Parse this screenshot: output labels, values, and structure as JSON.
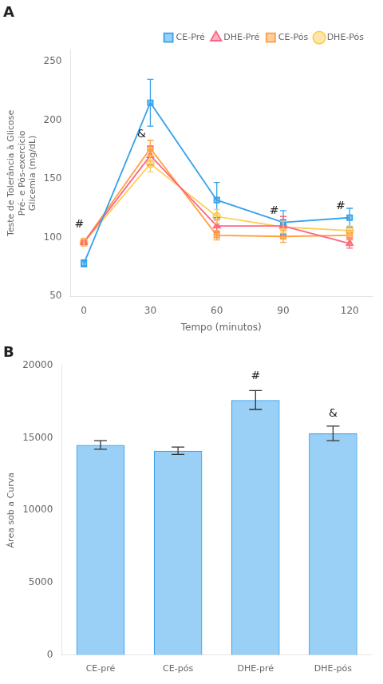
{
  "chart_data": [
    {
      "type": "line",
      "title": "A",
      "xlabel": "Tempo (minutos)",
      "ylabel": "Teste de Tolerância à Glicose\nPré- e Pós-exercício\nGlicemia (mg/dL)",
      "x": [
        0,
        30,
        60,
        90,
        120
      ],
      "xlim": [
        -6,
        130
      ],
      "xticks": [
        0,
        30,
        60,
        90,
        120
      ],
      "ylim": [
        50,
        260
      ],
      "yticks": [
        50,
        100,
        150,
        200,
        250
      ],
      "grid": false,
      "legend": "upper right",
      "series": [
        {
          "name": "CE-Pré",
          "values": [
            78,
            215,
            132,
            113,
            117
          ],
          "yerr": [
            3,
            20,
            15,
            10,
            8
          ],
          "marker": "square"
        },
        {
          "name": "DHE-Pré",
          "values": [
            96,
            170,
            110,
            110,
            95
          ],
          "yerr": [
            3,
            8,
            5,
            8,
            4
          ],
          "marker": "triangle"
        },
        {
          "name": "CE-Pós",
          "values": [
            96,
            176,
            102,
            101,
            102
          ],
          "yerr": [
            3,
            7,
            4,
            5,
            4
          ],
          "marker": "square"
        },
        {
          "name": "DHE-Pós",
          "values": [
            96,
            163,
            118,
            109,
            106
          ],
          "yerr": [
            3,
            7,
            6,
            5,
            4
          ],
          "marker": "circle"
        }
      ],
      "annotations": [
        {
          "text": "#",
          "x": 0,
          "y": 111
        },
        {
          "text": "&",
          "x": 28,
          "y": 188
        },
        {
          "text": "#",
          "x": 88,
          "y": 123
        },
        {
          "text": "#",
          "x": 118,
          "y": 127
        }
      ]
    },
    {
      "type": "bar",
      "title": "B",
      "ylabel": "Área sob a Curva",
      "categories": [
        "CE-pré",
        "CE-pós",
        "DHE-pré",
        "DHE-pós"
      ],
      "values": [
        14500,
        14100,
        17600,
        15300
      ],
      "yerr": [
        300,
        250,
        650,
        500
      ],
      "ylim": [
        0,
        20000
      ],
      "yticks": [
        0,
        5000,
        10000,
        15000,
        20000
      ],
      "grid": false,
      "annotations": [
        {
          "text": "#",
          "x": "DHE-pré",
          "y": 18850
        },
        {
          "text": "&",
          "x": "DHE-pós",
          "y": 16250
        }
      ]
    }
  ]
}
